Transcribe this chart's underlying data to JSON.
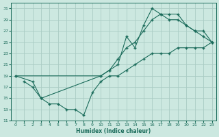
{
  "xlabel": "Humidex (Indice chaleur)",
  "bg_color": "#cce8e0",
  "grid_color": "#aaccc4",
  "line_color": "#1a6b5a",
  "xlim": [
    -0.5,
    23.5
  ],
  "ylim": [
    11,
    32
  ],
  "yticks": [
    11,
    13,
    15,
    17,
    19,
    21,
    23,
    25,
    27,
    29,
    31
  ],
  "xticks": [
    0,
    1,
    2,
    3,
    4,
    5,
    6,
    7,
    8,
    9,
    10,
    11,
    12,
    13,
    14,
    15,
    16,
    17,
    18,
    19,
    20,
    21,
    22,
    23
  ],
  "line1_x": [
    0,
    2,
    3,
    10,
    11,
    12,
    13,
    14,
    15,
    16,
    17,
    18,
    19,
    20,
    21,
    22,
    23
  ],
  "line1_y": [
    19,
    18,
    15,
    19,
    20,
    21,
    26,
    24,
    28,
    31,
    30,
    30,
    30,
    28,
    27,
    27,
    25
  ],
  "line2_x": [
    0,
    10,
    11,
    12,
    13,
    14,
    15,
    16,
    17,
    18,
    19,
    20,
    21,
    22,
    23
  ],
  "line2_y": [
    19,
    19,
    20,
    22,
    24,
    25,
    27,
    29,
    30,
    29,
    29,
    28,
    27,
    26,
    25
  ],
  "line3_x": [
    1,
    2,
    3,
    4,
    5,
    6,
    7,
    8,
    9,
    10,
    11,
    12,
    13,
    14,
    15,
    16,
    17,
    18,
    19,
    20,
    21,
    22,
    23
  ],
  "line3_y": [
    18,
    17,
    15,
    14,
    14,
    13,
    13,
    12,
    16,
    18,
    19,
    19,
    20,
    21,
    22,
    23,
    23,
    23,
    24,
    24,
    24,
    24,
    25
  ]
}
